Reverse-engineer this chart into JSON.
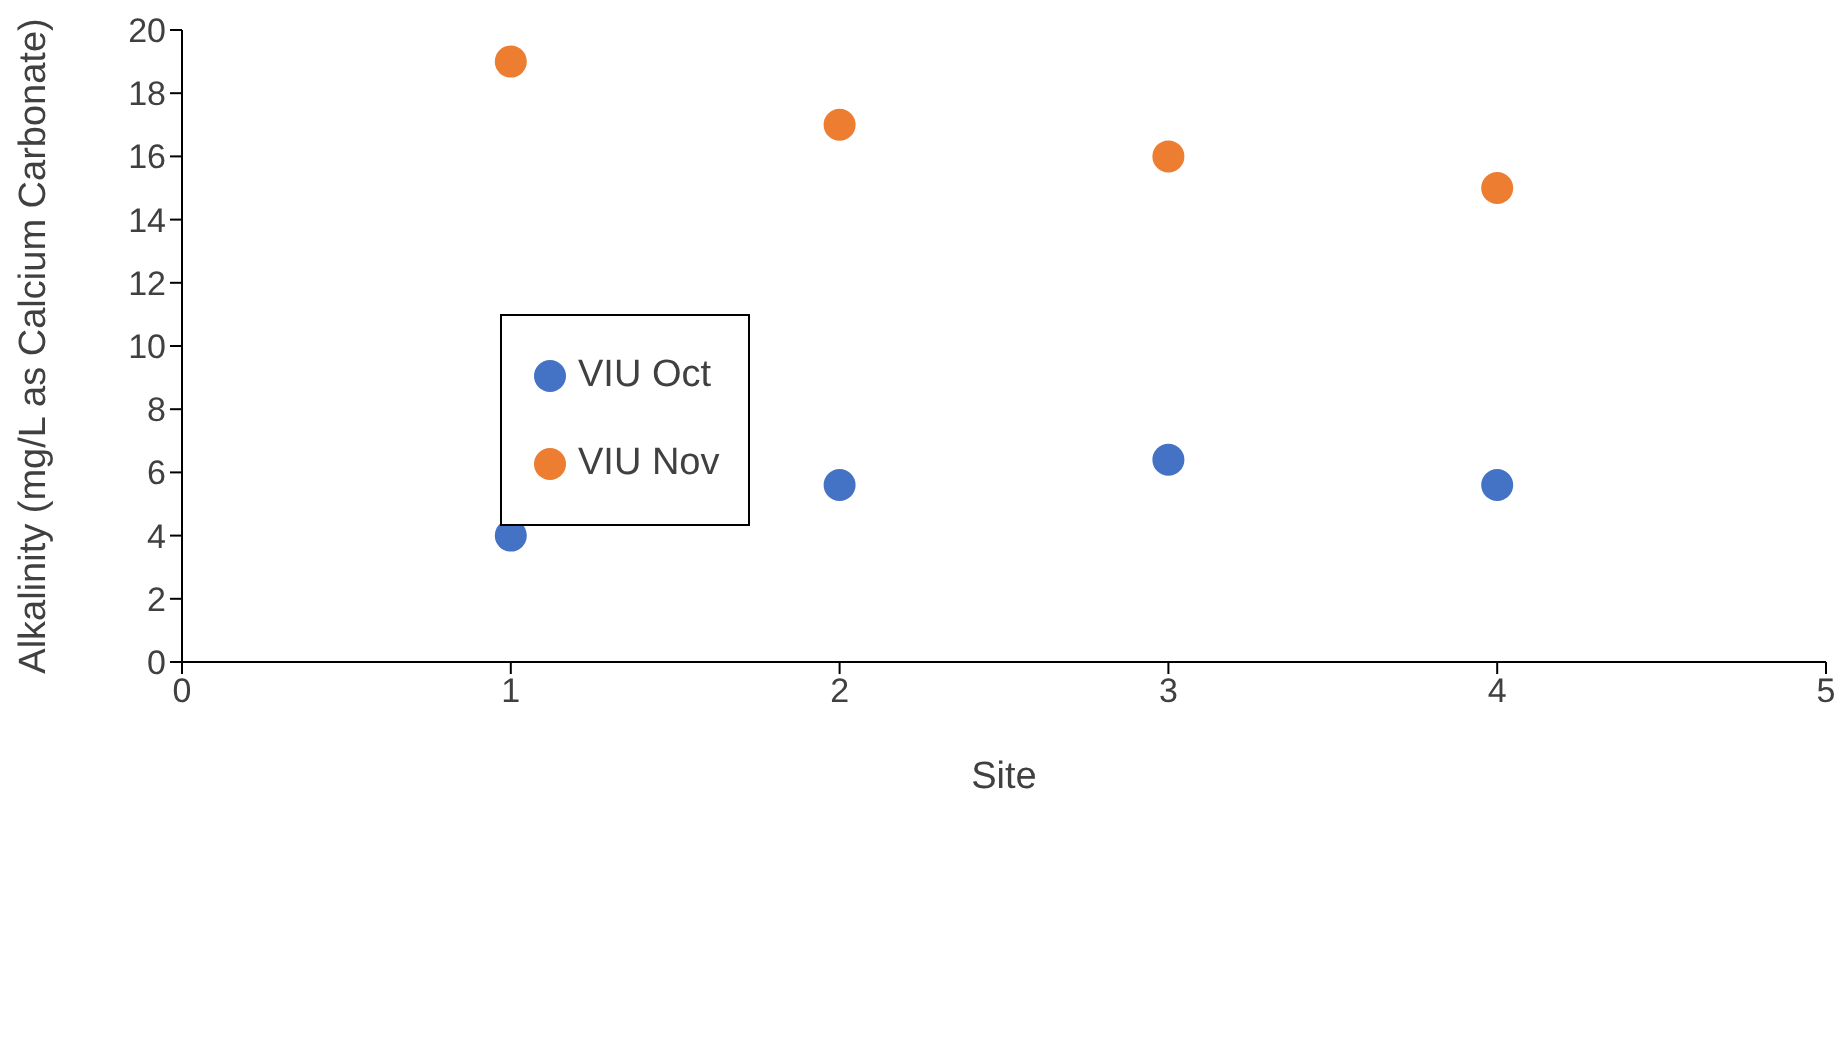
{
  "chart_data": {
    "type": "scatter",
    "xlabel": "Site",
    "ylabel": "Alkalinity (mg/L as Calcium Carbonate)",
    "x": [
      1,
      2,
      3,
      4
    ],
    "series": [
      {
        "name": "VIU Oct",
        "color": "#4472c4",
        "values": [
          4,
          5.6,
          6.4,
          5.6
        ]
      },
      {
        "name": "VIU Nov",
        "color": "#ed7d31",
        "values": [
          19,
          17,
          16,
          15
        ]
      }
    ],
    "xlim": [
      0,
      5
    ],
    "xticks": [
      0,
      1,
      2,
      3,
      4,
      5
    ],
    "ylim": [
      0,
      20
    ],
    "yticks": [
      0,
      2,
      4,
      6,
      8,
      10,
      12,
      14,
      16,
      18,
      20
    ],
    "grid": false,
    "legend": "left",
    "marker": "circle"
  }
}
